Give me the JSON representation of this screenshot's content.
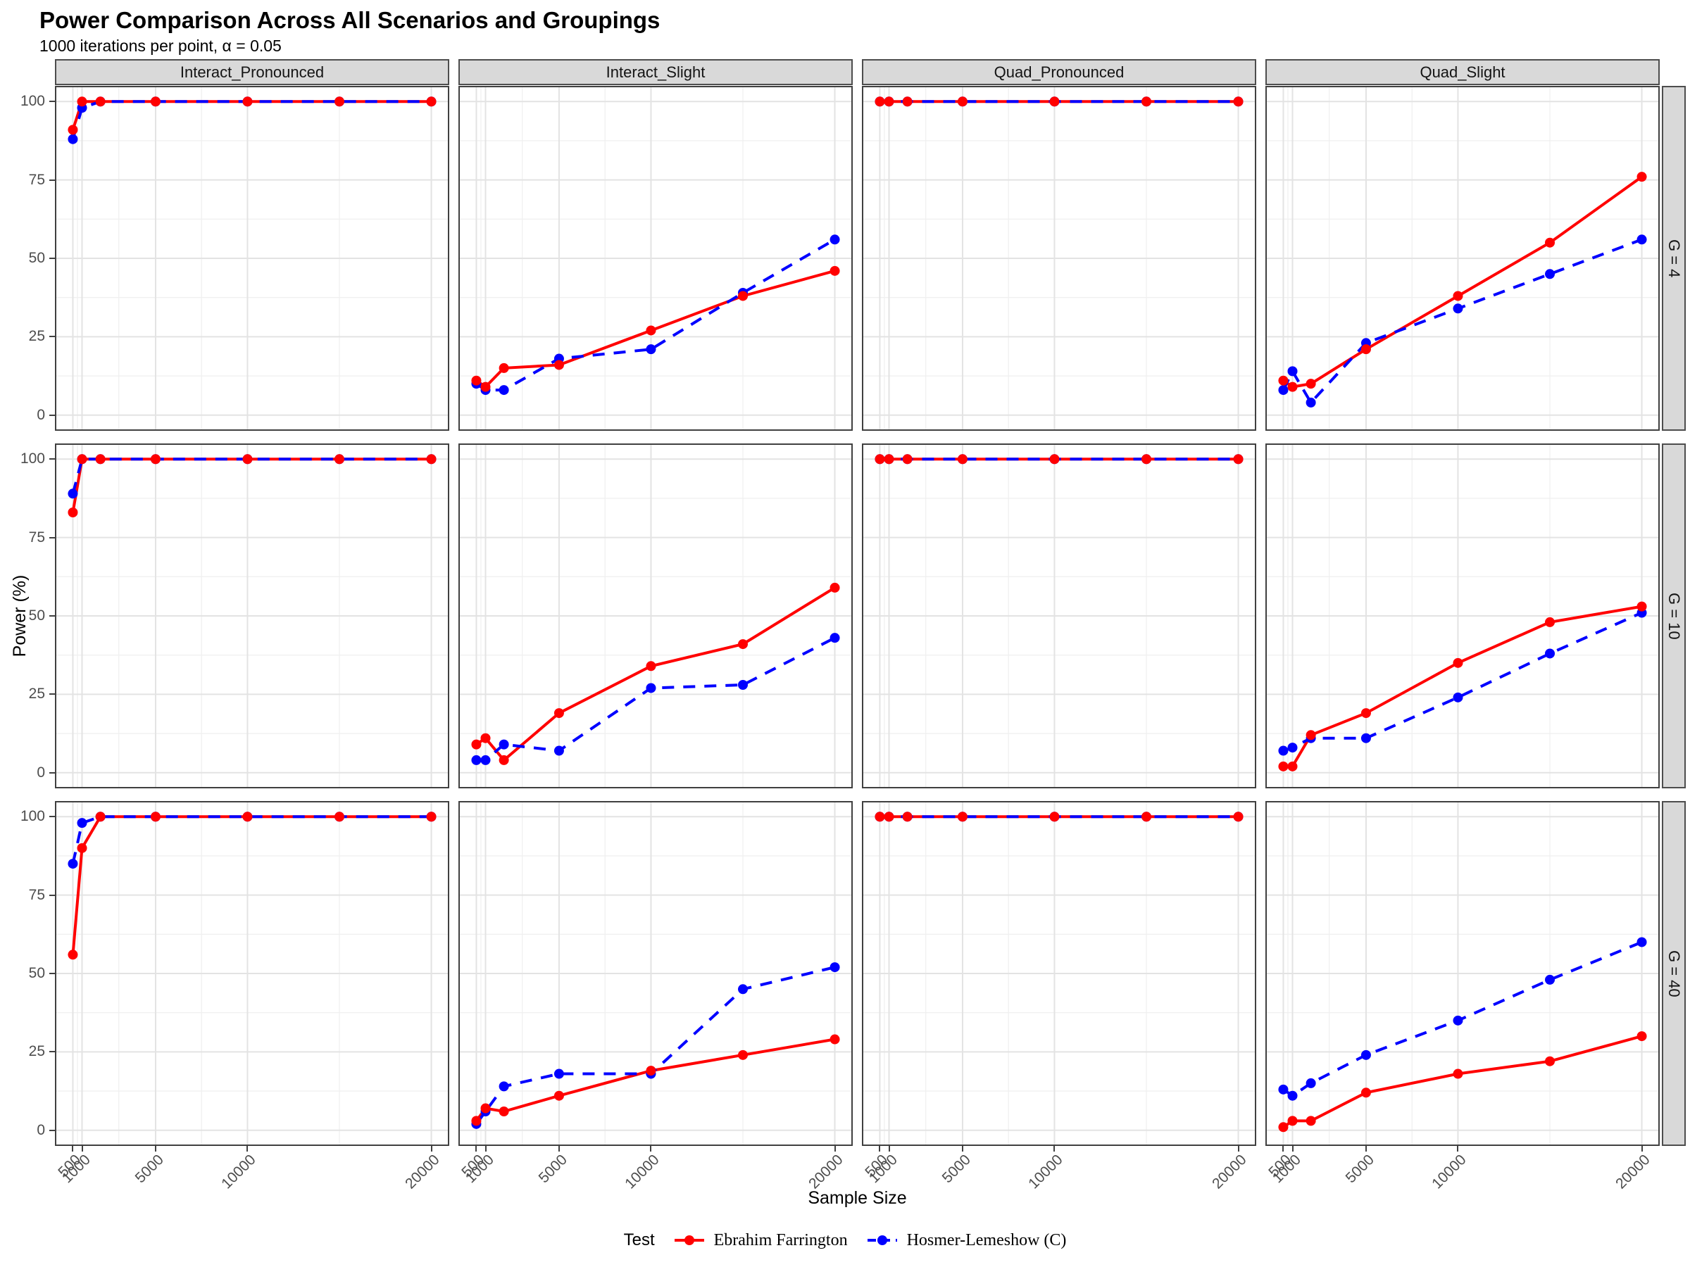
{
  "header": {
    "title": "Power Comparison Across All Scenarios and Groupings",
    "subtitle": "1000 iterations per point, α = 0.05"
  },
  "chart_data": {
    "type": "line",
    "title": "Power Comparison Across All Scenarios and Groupings",
    "subtitle": "1000 iterations per point, α = 0.05",
    "alpha": 0.05,
    "iterations_per_point": 1000,
    "xlabel": "Sample Size",
    "ylabel": "Power (%)",
    "x": [
      500,
      1000,
      2000,
      5000,
      10000,
      15000,
      20000
    ],
    "x_axis": {
      "scale": "linear",
      "breaks": [
        500,
        1000,
        5000,
        10000,
        20000
      ],
      "minor_breaks": [
        750,
        3000,
        7500,
        15000
      ],
      "range": [
        500,
        20000
      ],
      "expansion": 0.05,
      "tick_label_angle": 45
    },
    "y_axis": {
      "breaks": [
        0,
        25,
        50,
        75,
        100
      ],
      "minor_breaks": [
        12.5,
        37.5,
        62.5,
        87.5
      ],
      "range": [
        0,
        100
      ],
      "expansion": 0.05
    },
    "grid": true,
    "facet_cols": [
      "Interact_Pronounced",
      "Interact_Slight",
      "Quad_Pronounced",
      "Quad_Slight"
    ],
    "facet_rows": [
      "G = 4",
      "G = 10",
      "G = 40"
    ],
    "legend": {
      "title": "Test",
      "position": "bottom"
    },
    "series": [
      {
        "key": "ef",
        "name": "Ebrahim Farrington",
        "color": "#ff0000",
        "linestyle": "solid"
      },
      {
        "key": "hl",
        "name": "Hosmer-Lemeshow (C)",
        "color": "#0000ff",
        "linestyle": "dashed"
      }
    ],
    "panels": [
      {
        "scenario": "Interact_Pronounced",
        "group": "G = 4",
        "ef": [
          91,
          100,
          100,
          100,
          100,
          100,
          100
        ],
        "hl": [
          88,
          98,
          100,
          100,
          100,
          100,
          100
        ]
      },
      {
        "scenario": "Interact_Slight",
        "group": "G = 4",
        "ef": [
          11,
          9,
          15,
          16,
          27,
          38,
          46
        ],
        "hl": [
          10,
          8,
          8,
          18,
          21,
          39,
          56
        ]
      },
      {
        "scenario": "Quad_Pronounced",
        "group": "G = 4",
        "ef": [
          100,
          100,
          100,
          100,
          100,
          100,
          100
        ],
        "hl": [
          100,
          100,
          100,
          100,
          100,
          100,
          100
        ]
      },
      {
        "scenario": "Quad_Slight",
        "group": "G = 4",
        "ef": [
          11,
          9,
          10,
          21,
          38,
          55,
          76
        ],
        "hl": [
          8,
          14,
          4,
          23,
          34,
          45,
          56
        ]
      },
      {
        "scenario": "Interact_Pronounced",
        "group": "G = 10",
        "ef": [
          83,
          100,
          100,
          100,
          100,
          100,
          100
        ],
        "hl": [
          89,
          100,
          100,
          100,
          100,
          100,
          100
        ]
      },
      {
        "scenario": "Interact_Slight",
        "group": "G = 10",
        "ef": [
          9,
          11,
          4,
          19,
          34,
          41,
          59
        ],
        "hl": [
          4,
          4,
          9,
          7,
          27,
          28,
          43
        ]
      },
      {
        "scenario": "Quad_Pronounced",
        "group": "G = 10",
        "ef": [
          100,
          100,
          100,
          100,
          100,
          100,
          100
        ],
        "hl": [
          100,
          100,
          100,
          100,
          100,
          100,
          100
        ]
      },
      {
        "scenario": "Quad_Slight",
        "group": "G = 10",
        "ef": [
          2,
          2,
          12,
          19,
          35,
          48,
          53
        ],
        "hl": [
          7,
          8,
          11,
          11,
          24,
          38,
          51
        ]
      },
      {
        "scenario": "Interact_Pronounced",
        "group": "G = 40",
        "ef": [
          56,
          90,
          100,
          100,
          100,
          100,
          100
        ],
        "hl": [
          85,
          98,
          100,
          100,
          100,
          100,
          100
        ]
      },
      {
        "scenario": "Interact_Slight",
        "group": "G = 40",
        "ef": [
          3,
          7,
          6,
          11,
          19,
          24,
          29
        ],
        "hl": [
          2,
          6,
          14,
          18,
          18,
          45,
          52
        ]
      },
      {
        "scenario": "Quad_Pronounced",
        "group": "G = 40",
        "ef": [
          100,
          100,
          100,
          100,
          100,
          100,
          100
        ],
        "hl": [
          100,
          100,
          100,
          100,
          100,
          100,
          100
        ]
      },
      {
        "scenario": "Quad_Slight",
        "group": "G = 40",
        "ef": [
          1,
          3,
          3,
          12,
          18,
          22,
          30
        ],
        "hl": [
          13,
          11,
          15,
          24,
          35,
          48,
          60
        ]
      }
    ],
    "style": {
      "major_grid_color": "#e3e3e3",
      "minor_grid_color": "#f0f0f0",
      "panel_border_color": "#404040",
      "strip_fill": "#d9d9d9",
      "tick_text_color": "#4d4d4d",
      "point_radius": 7,
      "line_width": 4
    }
  }
}
